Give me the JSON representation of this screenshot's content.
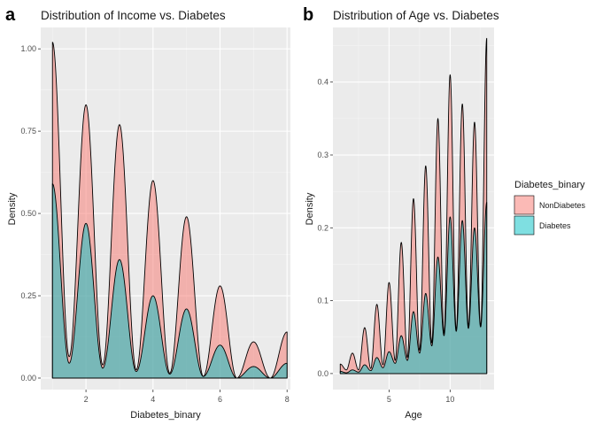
{
  "colors": {
    "panel_bg": "#EBEBEB",
    "grid_major": "#FFFFFF",
    "grid_minor": "#F5F5F5",
    "non_diabetes_fill": "#F8766D",
    "diabetes_fill": "#00BFC4",
    "outline": "#000000"
  },
  "legend": {
    "title": "Diabetes_binary",
    "items": [
      {
        "label": "NonDiabetes",
        "color": "#F8766D"
      },
      {
        "label": "Diabetes",
        "color": "#00BFC4"
      }
    ],
    "placement": "right"
  },
  "chart_data": [
    {
      "type": "area",
      "panel_letter": "a",
      "title": "Distribution of Income vs. Diabetes",
      "xlabel": "Diabetes_binary",
      "ylabel": "Density",
      "xlim": [
        0.65,
        8.1
      ],
      "ylim": [
        -0.035,
        1.065
      ],
      "xticks": [
        2,
        4,
        6,
        8
      ],
      "yticks": [
        0.0,
        0.25,
        0.5,
        0.75,
        1.0
      ],
      "ytick_labels": [
        "0.00",
        "0.25",
        "0.50",
        "0.75",
        "1.00"
      ],
      "grid": true,
      "fill_alpha": 0.5,
      "series": [
        {
          "name": "NonDiabetes",
          "peaks_x": [
            1,
            2,
            3,
            4,
            5,
            6,
            7,
            8
          ],
          "peaks_y": [
            1.02,
            0.83,
            0.77,
            0.6,
            0.49,
            0.28,
            0.11,
            0.14
          ],
          "valleys_y": [
            0.065,
            0.04,
            0.025,
            0.015,
            0.005,
            0.0,
            0.0
          ]
        },
        {
          "name": "Diabetes",
          "peaks_x": [
            1,
            2,
            3,
            4,
            5,
            6,
            7,
            8
          ],
          "peaks_y": [
            0.59,
            0.47,
            0.36,
            0.25,
            0.21,
            0.1,
            0.035,
            0.045
          ],
          "valleys_y": [
            0.045,
            0.03,
            0.02,
            0.012,
            0.005,
            0.0,
            0.0
          ]
        }
      ]
    },
    {
      "type": "area",
      "panel_letter": "b",
      "title": "Distribution of Age vs. Diabetes",
      "xlabel": "Age",
      "ylabel": "Density",
      "xlim": [
        0.4,
        13.6
      ],
      "ylim": [
        -0.022,
        0.475
      ],
      "xticks": [
        5,
        10
      ],
      "yticks": [
        0.0,
        0.1,
        0.2,
        0.3,
        0.4
      ],
      "ytick_labels": [
        "0.0",
        "0.1",
        "0.2",
        "0.3",
        "0.4"
      ],
      "grid": true,
      "fill_alpha": 0.5,
      "series": [
        {
          "name": "NonDiabetes",
          "peaks_x": [
            1,
            2,
            3,
            4,
            5,
            6,
            7,
            8,
            9,
            10,
            11,
            12,
            13
          ],
          "peaks_y": [
            0.013,
            0.028,
            0.063,
            0.095,
            0.125,
            0.18,
            0.24,
            0.285,
            0.35,
            0.41,
            0.37,
            0.345,
            0.46
          ],
          "valleys_y": [
            0.005,
            0.005,
            0.007,
            0.012,
            0.018,
            0.022,
            0.032,
            0.042,
            0.055,
            0.06,
            0.065,
            0.065
          ],
          "end_y": 0.235
        },
        {
          "name": "Diabetes",
          "peaks_x": [
            1,
            2,
            3,
            4,
            5,
            6,
            7,
            8,
            9,
            10,
            11,
            12,
            13
          ],
          "peaks_y": [
            0.003,
            0.005,
            0.012,
            0.022,
            0.03,
            0.052,
            0.085,
            0.11,
            0.16,
            0.215,
            0.21,
            0.2,
            0.235
          ],
          "valleys_y": [
            0.001,
            0.002,
            0.004,
            0.008,
            0.014,
            0.018,
            0.028,
            0.038,
            0.052,
            0.058,
            0.062,
            0.064
          ],
          "end_y": 0.235
        }
      ]
    }
  ]
}
